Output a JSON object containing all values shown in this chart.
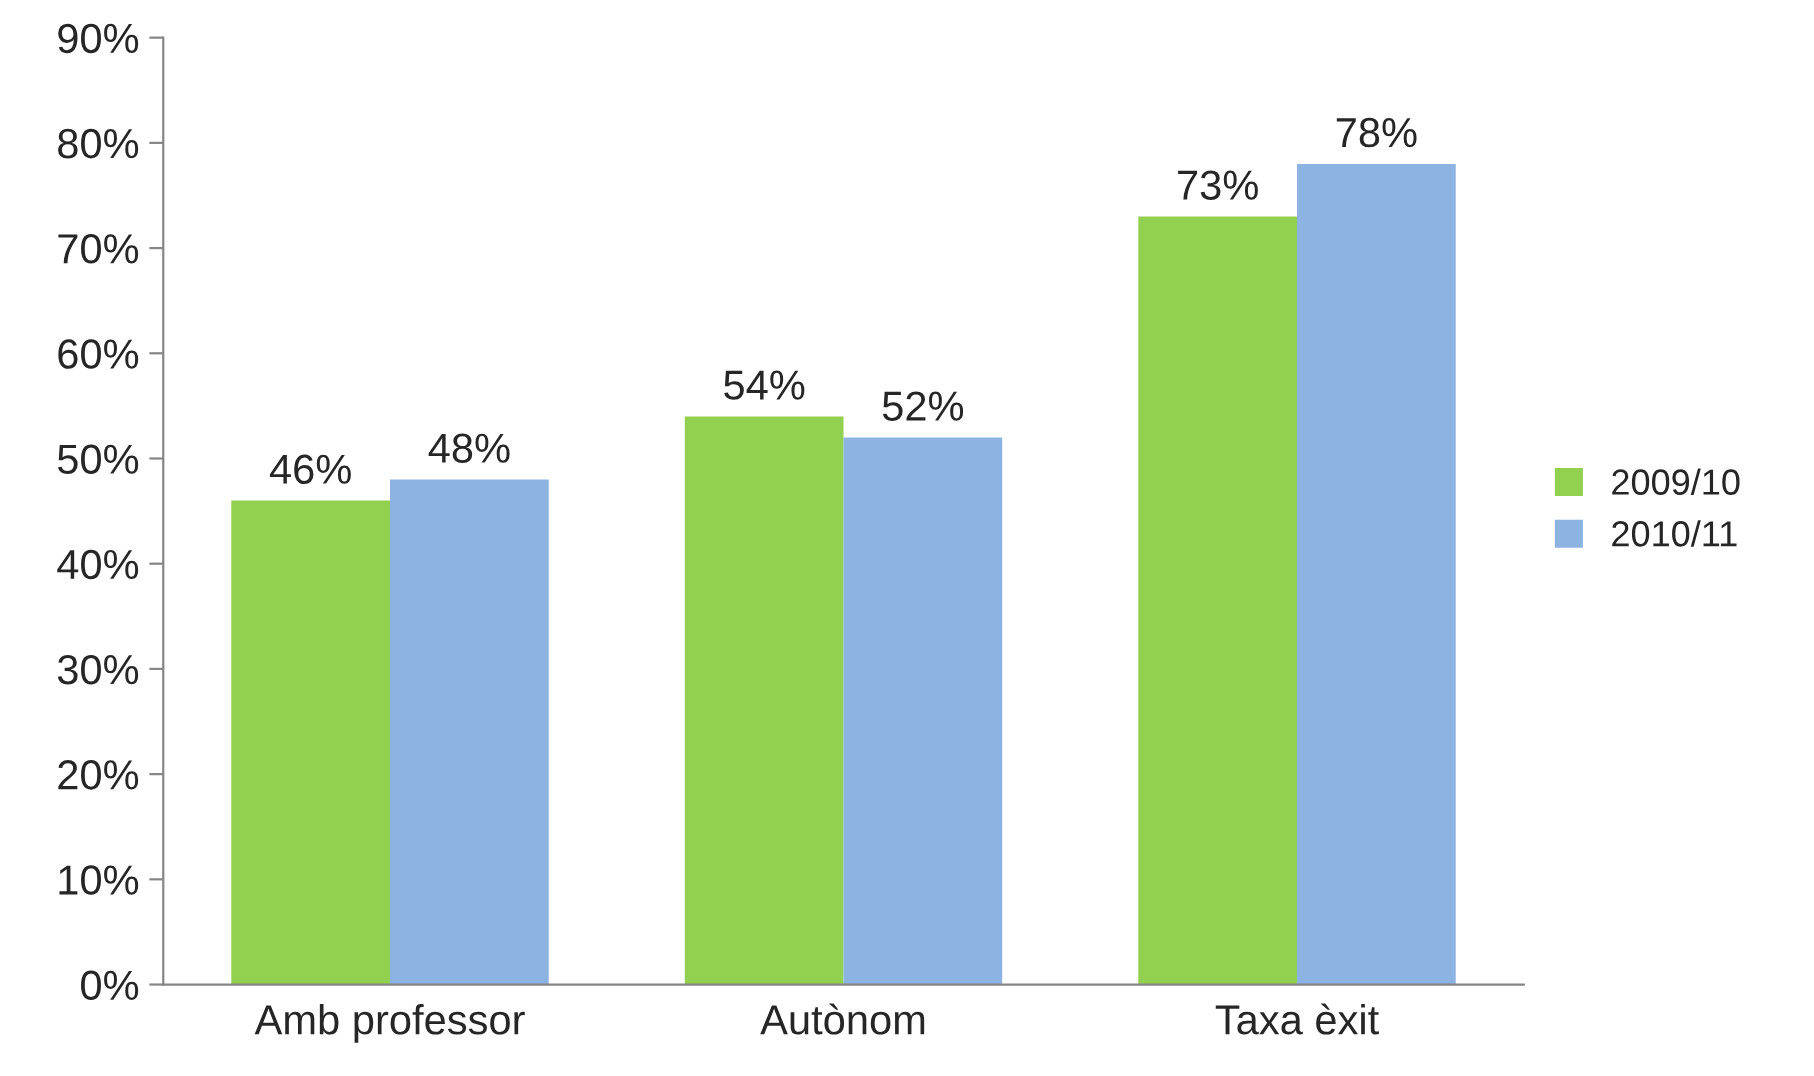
{
  "chart_data": {
    "type": "bar",
    "categories": [
      "Amb professor",
      "Autònom",
      "Taxa èxit"
    ],
    "series": [
      {
        "name": "2009/10",
        "color": "#92d050",
        "values": [
          46,
          54,
          73
        ],
        "value_labels": [
          "46%",
          "54%",
          "73%"
        ]
      },
      {
        "name": "2010/11",
        "color": "#8db3e2",
        "values": [
          48,
          52,
          78
        ],
        "value_labels": [
          "48%",
          "52%",
          "78%"
        ]
      }
    ],
    "ylim": [
      0,
      90
    ],
    "yticks": [
      {
        "value": 0,
        "label": "0%"
      },
      {
        "value": 10,
        "label": "10%"
      },
      {
        "value": 20,
        "label": "20%"
      },
      {
        "value": 30,
        "label": "30%"
      },
      {
        "value": 40,
        "label": "40%"
      },
      {
        "value": 50,
        "label": "50%"
      },
      {
        "value": 60,
        "label": "60%"
      },
      {
        "value": 70,
        "label": "70%"
      },
      {
        "value": 80,
        "label": "80%"
      },
      {
        "value": 90,
        "label": "90%"
      }
    ],
    "grid": false,
    "legend": "right"
  }
}
